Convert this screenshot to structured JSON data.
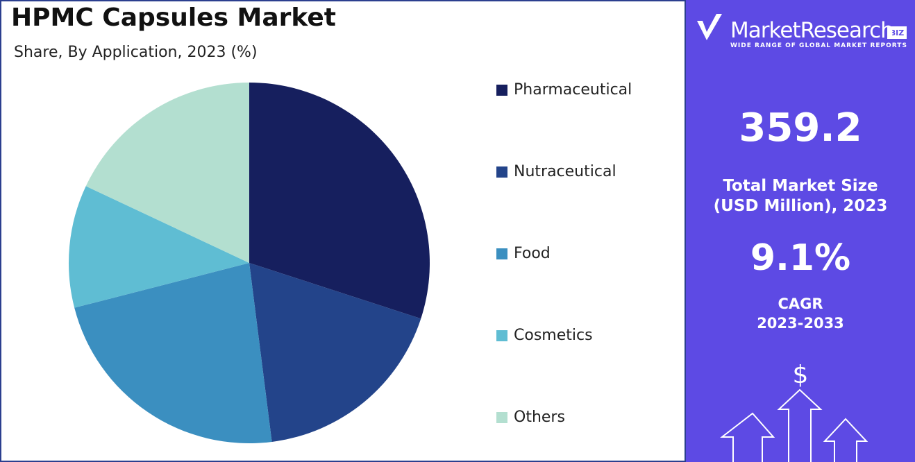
{
  "chart_data": {
    "type": "pie",
    "title": "HPMC Capsules Market",
    "subtitle": "Share, By Application, 2023 (%)",
    "categories": [
      "Pharmaceutical",
      "Nutraceutical",
      "Food",
      "Cosmetics",
      "Others"
    ],
    "values": [
      30,
      18,
      23,
      11,
      18
    ],
    "colors": [
      "#161f5e",
      "#23448a",
      "#3b8fc0",
      "#5fbdd3",
      "#b3dfd0"
    ],
    "legend": "right"
  },
  "panel": {
    "brand": "MarketResearch",
    "brand_tag": "BIZ",
    "tagline": "WIDE RANGE OF GLOBAL MARKET REPORTS",
    "market_size": "359.2",
    "market_size_label_1": "Total Market Size",
    "market_size_label_2": "(USD Million), 2023",
    "cagr": "9.1%",
    "cagr_label_1": "CAGR",
    "cagr_label_2": "2023-2033",
    "icon_symbol": "$"
  }
}
